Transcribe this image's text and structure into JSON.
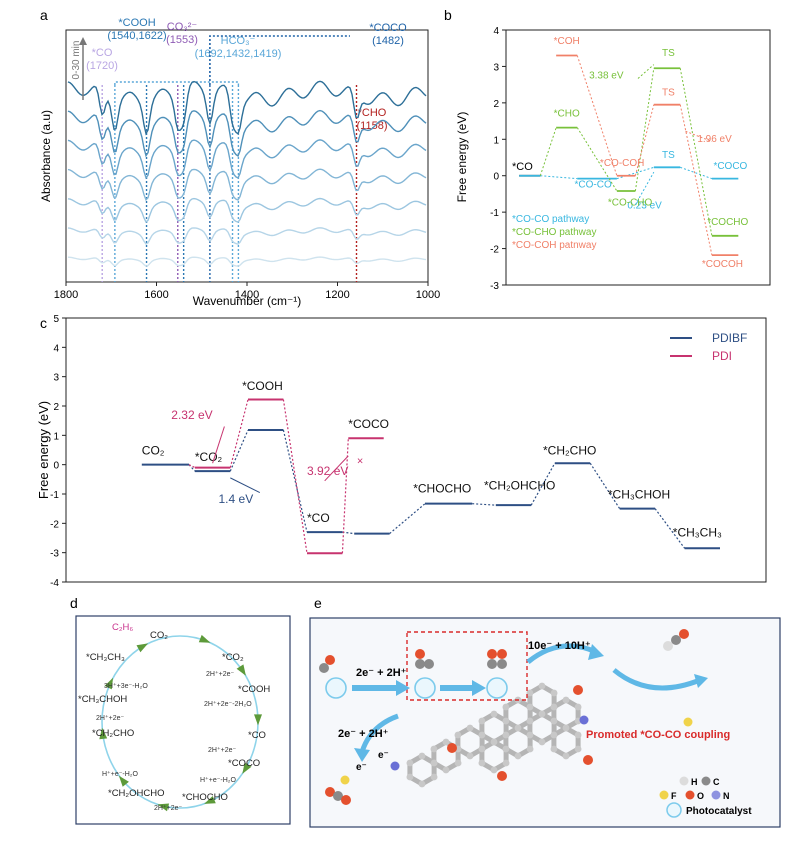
{
  "panel_letters": [
    "a",
    "b",
    "c",
    "d",
    "e"
  ],
  "chart_data": [
    {
      "panel": "a",
      "type": "line",
      "xlabel": "Wavenumber (cm⁻¹)",
      "ylabel": "Absorbance (a.u)",
      "xlim": [
        1800,
        1000
      ],
      "x_ticks": [
        "1800",
        "1600",
        "1400",
        "1200",
        "1000"
      ],
      "time_label": "0-30 min",
      "series_count": 7,
      "series_colors": [
        "#cfe3ee",
        "#b6d5e8",
        "#9cc6e0",
        "#83b6d6",
        "#6aa5cb",
        "#4f90b9",
        "#2d6f98"
      ],
      "baselines": [
        0.06,
        0.19,
        0.32,
        0.45,
        0.58,
        0.71,
        0.84
      ],
      "band_markers": [
        {
          "label": "*CO",
          "sublabel": "(1720)",
          "x": [
            1720
          ],
          "color": "#b9a6e3"
        },
        {
          "label": "*COOH",
          "sublabel": "(1540,1622)",
          "x": [
            1540,
            1622
          ],
          "color": "#2b78b4"
        },
        {
          "label": "CO₃²⁻",
          "sublabel": "(1553)",
          "x": [
            1553
          ],
          "color": "#8f5cb5"
        },
        {
          "label": "HCO₃⁻",
          "sublabel": "(1692,1432,1419)",
          "x": [
            1692,
            1432,
            1419
          ],
          "color": "#5aa7d8"
        },
        {
          "label": "*COCO",
          "sublabel": "(1482)",
          "x": [
            1482
          ],
          "color": "#1f63a8"
        },
        {
          "label": "*CHO",
          "sublabel": "(1158)",
          "x": [
            1158
          ],
          "color": "#b3211f"
        }
      ]
    },
    {
      "panel": "b",
      "type": "line",
      "ylabel": "Free energy (eV)",
      "ylim": [
        -3,
        4
      ],
      "y_ticks": [
        "-3",
        "-2",
        "-1",
        "0",
        "1",
        "2",
        "3",
        "4"
      ],
      "legend": [
        "*CO-CO pathway",
        "*CO-CHO pathway",
        "*CO-COH patnway"
      ],
      "series": [
        {
          "name": "*CO-CO pathway",
          "color": "#38b7e0",
          "levels": [
            {
              "x": [
                0.05,
                0.13
              ],
              "y": 0
            },
            {
              "x": [
                0.27,
                0.42
              ],
              "y": -0.08
            },
            {
              "x": [
                0.56,
                0.66
              ],
              "y": 0.23
            },
            {
              "x": [
                0.78,
                0.88
              ],
              "y": -0.08
            }
          ],
          "labels": [
            {
              "text": "*CO-CO",
              "at": [
                0.33,
                -0.33
              ],
              "color": "#38b7e0"
            },
            {
              "text": "TS",
              "at": [
                0.615,
                0.48
              ],
              "color": "#38b7e0"
            },
            {
              "text": "*COCO",
              "at": [
                0.85,
                0.18
              ],
              "color": "#38b7e0"
            },
            {
              "text": "0.23 eV",
              "at": [
                0.525,
                -0.9
              ],
              "color": "#38b7e0"
            }
          ]
        },
        {
          "name": "*CO-CHO pathway",
          "color": "#78c13a",
          "levels": [
            {
              "x": [
                0.19,
                0.27
              ],
              "y": 1.32
            },
            {
              "x": [
                0.42,
                0.49
              ],
              "y": -0.42
            },
            {
              "x": [
                0.56,
                0.66
              ],
              "y": 2.95
            },
            {
              "x": [
                0.78,
                0.88
              ],
              "y": -1.65
            }
          ],
          "labels": [
            {
              "text": "*CHO",
              "at": [
                0.23,
                1.62
              ],
              "color": "#78c13a"
            },
            {
              "text": "*CO-CHO",
              "at": [
                0.47,
                -0.82
              ],
              "color": "#78c13a"
            },
            {
              "text": "TS",
              "at": [
                0.615,
                3.28
              ],
              "color": "#78c13a"
            },
            {
              "text": "*COCHO",
              "at": [
                0.84,
                -1.35
              ],
              "color": "#78c13a"
            },
            {
              "text": "3.38 eV",
              "at": [
                0.38,
                2.67
              ],
              "color": "#78c13a"
            }
          ]
        },
        {
          "name": "*CO-COH patnway",
          "color": "#f08068",
          "levels": [
            {
              "x": [
                0.19,
                0.27
              ],
              "y": 3.3
            },
            {
              "x": [
                0.42,
                0.49
              ],
              "y": 0.0
            },
            {
              "x": [
                0.56,
                0.66
              ],
              "y": 1.95
            },
            {
              "x": [
                0.78,
                0.88
              ],
              "y": -2.18
            }
          ],
          "labels": [
            {
              "text": "*COH",
              "at": [
                0.23,
                3.62
              ],
              "color": "#f08068"
            },
            {
              "text": "*CO-COH",
              "at": [
                0.44,
                0.26
              ],
              "color": "#f08068"
            },
            {
              "text": "TS",
              "at": [
                0.615,
                2.2
              ],
              "color": "#f08068"
            },
            {
              "text": "*COCOH",
              "at": [
                0.82,
                -2.5
              ],
              "color": "#f08068"
            },
            {
              "text": "1.96 eV",
              "at": [
                0.79,
                0.92
              ],
              "color": "#f08068"
            }
          ]
        }
      ],
      "common_start": {
        "text": "*CO",
        "color": "#222"
      }
    },
    {
      "panel": "c",
      "type": "line",
      "ylabel": "Free energy (eV)",
      "ylim": [
        -4,
        5
      ],
      "y_ticks": [
        "-4",
        "-3",
        "-2",
        "-1",
        "0",
        "1",
        "2",
        "3",
        "4",
        "5"
      ],
      "legend": [
        "PDIBF",
        "PDI"
      ],
      "series": [
        {
          "name": "PDIBF",
          "color": "#2e4f84",
          "levels": [
            {
              "x": [
                0.02,
                0.1
              ],
              "y": 0.0
            },
            {
              "x": [
                0.11,
                0.17
              ],
              "y": -0.22
            },
            {
              "x": [
                0.2,
                0.26
              ],
              "y": 1.18
            },
            {
              "x": [
                0.3,
                0.36
              ],
              "y": -2.3
            },
            {
              "x": [
                0.38,
                0.44
              ],
              "y": -2.35
            },
            {
              "x": [
                0.5,
                0.58
              ],
              "y": -1.33
            },
            {
              "x": [
                0.62,
                0.68
              ],
              "y": -1.38
            },
            {
              "x": [
                0.72,
                0.78
              ],
              "y": 0.05
            },
            {
              "x": [
                0.83,
                0.89
              ],
              "y": -1.5
            },
            {
              "x": [
                0.94,
                1.0
              ],
              "y": -2.85
            }
          ]
        },
        {
          "name": "PDI",
          "color": "#c7336f",
          "levels": [
            {
              "x": [
                0.11,
                0.17
              ],
              "y": -0.1
            },
            {
              "x": [
                0.2,
                0.26
              ],
              "y": 2.22
            },
            {
              "x": [
                0.3,
                0.36
              ],
              "y": -3.02
            },
            {
              "x": [
                0.37,
                0.43
              ],
              "y": 0.9
            }
          ]
        }
      ],
      "level_labels": [
        {
          "text": "CO₂",
          "at": [
            0.02,
            0.35
          ]
        },
        {
          "text": "*CO₂",
          "at": [
            0.11,
            0.12
          ]
        },
        {
          "text": "*COOH",
          "at": [
            0.19,
            2.55
          ]
        },
        {
          "text": "*CO",
          "at": [
            0.3,
            -1.95
          ]
        },
        {
          "text": "*COCO",
          "at": [
            0.37,
            1.25
          ]
        },
        {
          "text": "*CHOCHO",
          "at": [
            0.48,
            -0.95
          ]
        },
        {
          "text": "*CH₂OHCHO",
          "at": [
            0.6,
            -0.85
          ]
        },
        {
          "text": "*CH₂CHO",
          "at": [
            0.7,
            0.35
          ]
        },
        {
          "text": "*CH₃CHOH",
          "at": [
            0.81,
            -1.15
          ]
        },
        {
          "text": "*CH₃CH₃",
          "at": [
            0.92,
            -2.45
          ]
        }
      ],
      "annotations": [
        {
          "text": "2.32 eV",
          "at": [
            0.07,
            1.55
          ],
          "color": "#c7336f"
        },
        {
          "text": "1.4 eV",
          "at": [
            0.15,
            -1.3
          ],
          "color": "#2e4f84"
        },
        {
          "text": "3.92 eV",
          "at": [
            0.3,
            -0.35
          ],
          "color": "#c7336f"
        }
      ]
    }
  ],
  "panel_d": {
    "nodes": [
      {
        "text": "CO₂",
        "color": "#222"
      },
      {
        "text": "*CO₂",
        "color": "#222"
      },
      {
        "text": "*COOH",
        "color": "#222"
      },
      {
        "text": "*CO",
        "color": "#222"
      },
      {
        "text": "*COCO",
        "color": "#222"
      },
      {
        "text": "*CHOCHO",
        "color": "#222"
      },
      {
        "text": "*CH₂OHCHO",
        "color": "#222"
      },
      {
        "text": "*CH₂CHO",
        "color": "#222"
      },
      {
        "text": "*CH₃CHOH",
        "color": "#222"
      },
      {
        "text": "*CH₃CH₃",
        "color": "#222"
      },
      {
        "text": "C₂H₆",
        "color": "#c9338d"
      }
    ],
    "steps": [
      "2H⁺+2e⁻",
      "2H⁺+2e⁻-2H₂O",
      "2H⁺+2e⁻",
      "H⁺+e⁻-H₂O",
      "2H⁺+2e⁻",
      "H⁺+e⁻-H₂O",
      "2H⁺+2e⁻",
      "3H⁺+3e⁻-H₂O"
    ]
  },
  "panel_e": {
    "step1": "2e⁻ + 2H⁺",
    "step2": "10e⁻ + 10H⁺",
    "step3": "2e⁻ + 2H⁺",
    "electron": "e⁻",
    "coupling": "Promoted *CO-CO coupling",
    "legend": [
      {
        "symbol": "H",
        "color": "#dcdcdc"
      },
      {
        "symbol": "C",
        "color": "#8a8a8a"
      },
      {
        "symbol": "F",
        "color": "#f0d34a"
      },
      {
        "symbol": "O",
        "color": "#e4502e"
      },
      {
        "symbol": "N",
        "color": "#8e93e0"
      }
    ],
    "photocatalyst": "Photocatalyst"
  }
}
